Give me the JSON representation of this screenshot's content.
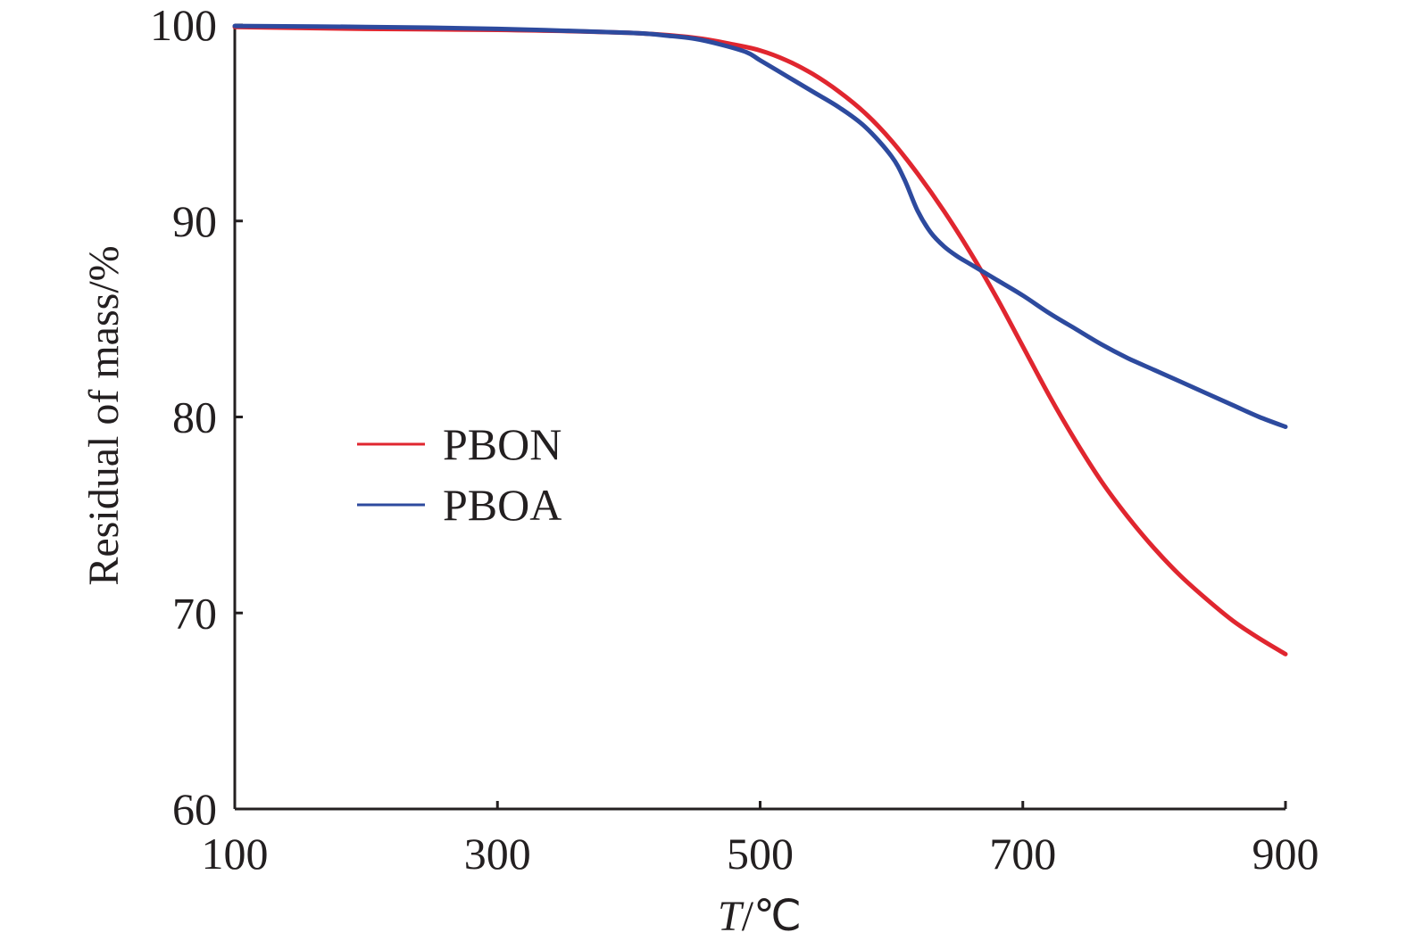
{
  "chart_data": {
    "type": "line",
    "title": "",
    "xlabel_italic": "T",
    "xlabel_rest": "/℃",
    "ylabel": "Residual of mass/%",
    "xlim": [
      100,
      900
    ],
    "ylim": [
      60,
      100
    ],
    "xticks": [
      100,
      300,
      500,
      700,
      900
    ],
    "xtick_labels": [
      "100",
      "300",
      "500",
      "700",
      "900"
    ],
    "yticks": [
      60,
      70,
      80,
      90,
      100
    ],
    "ytick_labels": [
      "60",
      "70",
      "80",
      "90",
      "100"
    ],
    "grid": false,
    "legend_position": "center-left",
    "series": [
      {
        "name": "PBON",
        "color": "#e0262f",
        "x": [
          100,
          200,
          300,
          400,
          450,
          480,
          500,
          520,
          540,
          560,
          580,
          600,
          620,
          640,
          660,
          680,
          700,
          720,
          740,
          760,
          780,
          800,
          820,
          840,
          860,
          880,
          900
        ],
        "y": [
          99.9,
          99.8,
          99.75,
          99.6,
          99.35,
          99.0,
          98.7,
          98.2,
          97.5,
          96.6,
          95.5,
          94.1,
          92.4,
          90.5,
          88.4,
          86.1,
          83.6,
          81.1,
          78.8,
          76.7,
          74.9,
          73.3,
          71.9,
          70.7,
          69.6,
          68.7,
          67.9
        ]
      },
      {
        "name": "PBOA",
        "color": "#2d4a9e",
        "x": [
          100,
          200,
          300,
          400,
          430,
          450,
          470,
          490,
          500,
          520,
          540,
          560,
          580,
          600,
          610,
          620,
          630,
          640,
          650,
          660,
          680,
          700,
          720,
          740,
          760,
          780,
          800,
          820,
          840,
          860,
          880,
          900
        ],
        "y": [
          99.95,
          99.9,
          99.8,
          99.6,
          99.45,
          99.3,
          99.0,
          98.6,
          98.2,
          97.4,
          96.6,
          95.8,
          94.8,
          93.3,
          92.1,
          90.5,
          89.4,
          88.7,
          88.2,
          87.8,
          87.0,
          86.2,
          85.3,
          84.5,
          83.7,
          83.0,
          82.4,
          81.8,
          81.2,
          80.6,
          80.0,
          79.5
        ]
      }
    ]
  }
}
